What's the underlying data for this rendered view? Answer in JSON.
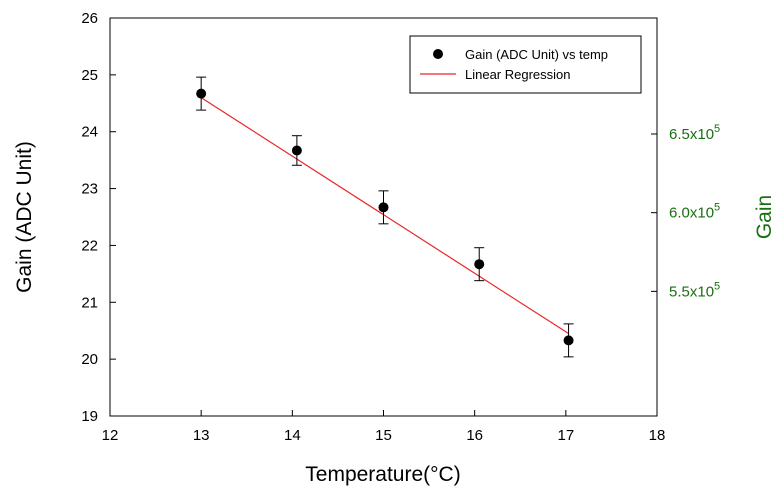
{
  "chart_data": {
    "type": "scatter",
    "xlabel": "Temperature(°C)",
    "ylabel": "Gain (ADC Unit)",
    "y2label": "Gain",
    "xlim": [
      12,
      18
    ],
    "ylim": [
      19,
      26
    ],
    "y2lim": [
      470800,
      723700
    ],
    "xticks": [
      12,
      13,
      14,
      15,
      16,
      17,
      18
    ],
    "yticks": [
      19,
      20,
      21,
      22,
      23,
      24,
      25,
      26
    ],
    "y2ticks": [
      {
        "value": 550000,
        "mantissa": "5.5x10",
        "exponent": "5"
      },
      {
        "value": 600000,
        "mantissa": "6.0x10",
        "exponent": "5"
      },
      {
        "value": 650000,
        "mantissa": "6.5x10",
        "exponent": "5"
      }
    ],
    "grid": false,
    "legend_position": "top-right",
    "series": [
      {
        "name": "Gain (ADC Unit) vs temp",
        "type": "scatter",
        "color": "#000000",
        "points": [
          {
            "x": 13.0,
            "y": 24.67,
            "yerr": 0.29
          },
          {
            "x": 14.05,
            "y": 23.67,
            "yerr": 0.26
          },
          {
            "x": 15.0,
            "y": 22.67,
            "yerr": 0.29
          },
          {
            "x": 16.05,
            "y": 21.67,
            "yerr": 0.29
          },
          {
            "x": 17.03,
            "y": 20.33,
            "yerr": 0.29
          }
        ]
      },
      {
        "name": "Linear Regression",
        "type": "line",
        "color": "#e8262a",
        "x": [
          13.0,
          17.03
        ],
        "y": [
          24.6,
          20.45
        ]
      }
    ],
    "right_axis_color": "#1a6f12"
  }
}
